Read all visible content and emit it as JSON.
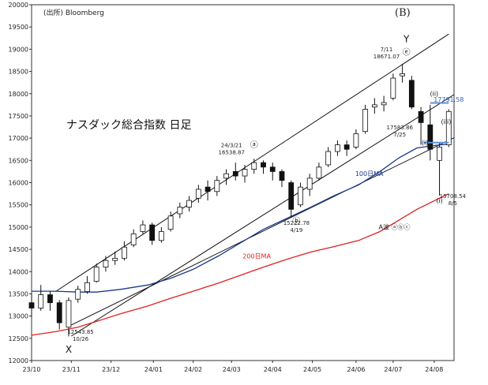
{
  "source_label": "(出所) Bloomberg",
  "panel_label": "(B)",
  "chart_data": {
    "type": "candlestick",
    "title": "ナスダック総合指数 日足",
    "ylim": [
      12000,
      20000
    ],
    "y_ticks": [
      12000,
      12500,
      13000,
      13500,
      14000,
      14500,
      15000,
      15500,
      16000,
      16500,
      17000,
      17500,
      18000,
      18500,
      19000,
      19500,
      20000
    ],
    "x_ticks": [
      "23/10",
      "23/11",
      "23/12",
      "24/01",
      "24/02",
      "24/03",
      "24/04",
      "24/05",
      "24/06",
      "24/07",
      "24/08"
    ],
    "x_start": "2023-10-02",
    "x_end": "2024-08-16",
    "grid": false,
    "series": [
      {
        "name": "100日MA",
        "color": "#1a3a8c",
        "points": [
          [
            "2023-10-02",
            13560
          ],
          [
            "2023-10-20",
            13560
          ],
          [
            "2023-11-06",
            13540
          ],
          [
            "2023-11-20",
            13540
          ],
          [
            "2023-12-08",
            13600
          ],
          [
            "2023-12-29",
            13700
          ],
          [
            "2024-01-15",
            13850
          ],
          [
            "2024-02-01",
            14050
          ],
          [
            "2024-02-20",
            14350
          ],
          [
            "2024-03-08",
            14650
          ],
          [
            "2024-03-25",
            14950
          ],
          [
            "2024-04-12",
            15200
          ],
          [
            "2024-04-30",
            15450
          ],
          [
            "2024-05-17",
            15700
          ],
          [
            "2024-06-05",
            15950
          ],
          [
            "2024-06-21",
            16250
          ],
          [
            "2024-07-05",
            16550
          ],
          [
            "2024-07-19",
            16780
          ],
          [
            "2024-08-05",
            16850
          ],
          [
            "2024-08-12",
            16860
          ]
        ]
      },
      {
        "name": "200日MA",
        "color": "#e02020",
        "points": [
          [
            "2023-10-02",
            12570
          ],
          [
            "2023-10-20",
            12650
          ],
          [
            "2023-11-06",
            12750
          ],
          [
            "2023-11-20",
            12880
          ],
          [
            "2023-12-08",
            13050
          ],
          [
            "2023-12-29",
            13230
          ],
          [
            "2024-01-15",
            13400
          ],
          [
            "2024-02-01",
            13560
          ],
          [
            "2024-02-20",
            13740
          ],
          [
            "2024-03-08",
            13920
          ],
          [
            "2024-03-25",
            14100
          ],
          [
            "2024-04-12",
            14280
          ],
          [
            "2024-04-30",
            14440
          ],
          [
            "2024-05-17",
            14560
          ],
          [
            "2024-06-05",
            14700
          ],
          [
            "2024-06-21",
            14900
          ],
          [
            "2024-07-05",
            15150
          ],
          [
            "2024-07-19",
            15400
          ],
          [
            "2024-08-05",
            15650
          ],
          [
            "2024-08-12",
            15750
          ]
        ]
      }
    ],
    "candles": [
      [
        "2023-10-02",
        13300,
        13180,
        13500,
        12980
      ],
      [
        "2023-10-09",
        13180,
        13480,
        13700,
        13120
      ],
      [
        "2023-10-16",
        13480,
        13300,
        13560,
        13120
      ],
      [
        "2023-10-23",
        13300,
        12850,
        13360,
        12700
      ],
      [
        "2023-10-30",
        12750,
        13350,
        13420,
        12543
      ],
      [
        "2023-11-06",
        13380,
        13600,
        13680,
        13300
      ],
      [
        "2023-11-13",
        13550,
        13750,
        13900,
        13500
      ],
      [
        "2023-11-20",
        13780,
        14100,
        14180,
        13750
      ],
      [
        "2023-11-27",
        14100,
        14250,
        14350,
        14000
      ],
      [
        "2023-12-04",
        14250,
        14300,
        14450,
        14150
      ],
      [
        "2023-12-11",
        14300,
        14550,
        14680,
        14250
      ],
      [
        "2023-12-18",
        14600,
        14850,
        14950,
        14550
      ],
      [
        "2023-12-25",
        14900,
        15050,
        15150,
        14850
      ],
      [
        "2024-01-01",
        15050,
        14700,
        15100,
        14600
      ],
      [
        "2024-01-08",
        14700,
        14900,
        15000,
        14650
      ],
      [
        "2024-01-15",
        14950,
        15250,
        15350,
        14900
      ],
      [
        "2024-01-22",
        15300,
        15450,
        15550,
        15200
      ],
      [
        "2024-01-29",
        15450,
        15600,
        15700,
        15350
      ],
      [
        "2024-02-05",
        15650,
        15850,
        15950,
        15550
      ],
      [
        "2024-02-12",
        15900,
        15800,
        16050,
        15600
      ],
      [
        "2024-02-19",
        15800,
        16050,
        16150,
        15700
      ],
      [
        "2024-02-26",
        16100,
        16200,
        16300,
        15950
      ],
      [
        "2024-03-04",
        16250,
        16150,
        16450,
        16050
      ],
      [
        "2024-03-11",
        16150,
        16300,
        16400,
        16000
      ],
      [
        "2024-03-18",
        16300,
        16450,
        16538,
        16200
      ],
      [
        "2024-03-25",
        16450,
        16350,
        16500,
        16200
      ],
      [
        "2024-04-01",
        16350,
        16250,
        16450,
        16050
      ],
      [
        "2024-04-08",
        16250,
        16050,
        16300,
        15900
      ],
      [
        "2024-04-15",
        16000,
        15400,
        16050,
        15222
      ],
      [
        "2024-04-22",
        15500,
        15900,
        16000,
        15450
      ],
      [
        "2024-04-29",
        15850,
        16100,
        16200,
        15700
      ],
      [
        "2024-05-06",
        16100,
        16350,
        16450,
        16050
      ],
      [
        "2024-05-13",
        16400,
        16700,
        16800,
        16350
      ],
      [
        "2024-05-20",
        16700,
        16850,
        16950,
        16600
      ],
      [
        "2024-05-27",
        16850,
        16750,
        16950,
        16600
      ],
      [
        "2024-06-03",
        16800,
        17100,
        17200,
        16750
      ],
      [
        "2024-06-10",
        17150,
        17650,
        17750,
        17100
      ],
      [
        "2024-06-17",
        17700,
        17750,
        17900,
        17550
      ],
      [
        "2024-06-24",
        17750,
        17800,
        17950,
        17600
      ],
      [
        "2024-07-01",
        17900,
        18350,
        18450,
        17850
      ],
      [
        "2024-07-08",
        18400,
        18450,
        18671,
        18250
      ],
      [
        "2024-07-15",
        18300,
        17700,
        18400,
        17650
      ],
      [
        "2024-07-22",
        17600,
        17350,
        17700,
        16850
      ],
      [
        "2024-07-29",
        17300,
        16750,
        17750,
        16500
      ],
      [
        "2024-08-05",
        16500,
        16800,
        16900,
        15708
      ],
      [
        "2024-08-12",
        16850,
        17600,
        17650,
        16800
      ]
    ],
    "channels": [
      {
        "name": "upper-channel",
        "points": [
          [
            "2023-10-20",
            13550
          ],
          [
            "2024-08-12",
            19340
          ]
        ]
      },
      {
        "name": "lower-channel",
        "points": [
          [
            "2023-11-01",
            12550
          ],
          [
            "2024-08-16",
            17980
          ]
        ]
      },
      {
        "name": "middle-channel",
        "points": [
          [
            "2023-11-01",
            12800
          ],
          [
            "2024-08-16",
            17010
          ]
        ]
      }
    ],
    "hlines": [
      {
        "name": "level-17791",
        "color": "#5b8fd6",
        "y": 17791,
        "from": "2024-07-29",
        "to": "2024-08-12"
      },
      {
        "name": "level-16900",
        "color": "#5b8fd6",
        "y": 16900,
        "from": "2024-07-24",
        "to": "2024-08-12"
      }
    ],
    "wave_labels": [
      {
        "name": "wave-x",
        "label": "X",
        "date": "2023-10-30",
        "y": 12180,
        "size": 12
      },
      {
        "name": "wave-y",
        "label": "Y",
        "date": "2024-07-11",
        "y": 19160,
        "size": 12
      },
      {
        "name": "wave-a",
        "label": "ⓐ",
        "date": "2024-03-18",
        "y": 16790,
        "size": 10
      },
      {
        "name": "wave-b",
        "label": "ⓑ",
        "date": "2024-04-19",
        "y": 15080,
        "size": 10
      },
      {
        "name": "wave-e",
        "label": "ⓔ",
        "date": "2024-07-11",
        "y": 18870,
        "size": 10
      },
      {
        "name": "wave-i",
        "label": "(i)",
        "date": "2024-07-25",
        "y": 16850,
        "size": 8
      },
      {
        "name": "wave-ii",
        "label": "(ii)",
        "date": "2024-08-01",
        "y": 17950,
        "size": 8
      },
      {
        "name": "wave-iii",
        "label": "(iii)",
        "date": "2024-08-10",
        "y": 17320,
        "size": 8
      },
      {
        "name": "wave-i-low",
        "label": "(i)",
        "date": "2024-08-05",
        "y": 15550,
        "size": 8
      }
    ],
    "annotations": [
      {
        "name": "low-1026",
        "lines": [
          "12543.85",
          "10/26"
        ],
        "date": "2023-11-08",
        "y": 12600
      },
      {
        "name": "high-0321",
        "lines": [
          "24/3/21",
          "16538.87"
        ],
        "date": "2024-03-01",
        "y": 16800
      },
      {
        "name": "low-0419",
        "lines": [
          "15222.78",
          "4/19"
        ],
        "date": "2024-04-19",
        "y": 15050
      },
      {
        "name": "high-0711",
        "lines": [
          "7/11",
          "18671.07"
        ],
        "date": "2024-06-26",
        "y": 18950
      },
      {
        "name": "level-0725",
        "lines": [
          "17583.86",
          "7/25"
        ],
        "date": "2024-07-06",
        "y": 17200
      },
      {
        "name": "low-0805",
        "lines": [
          "15708.54",
          "8/5"
        ],
        "date": "2024-08-15",
        "y": 15650
      }
    ],
    "series_labels": [
      {
        "name": "ma100-label",
        "text": "100日MA",
        "date": "2024-06-13",
        "y": 16150,
        "color": "#1a3a8c"
      },
      {
        "name": "ma200-label",
        "text": "200日MA",
        "date": "2024-03-20",
        "y": 14300,
        "color": "#e02020"
      },
      {
        "name": "level-17791-label",
        "text": "17791.58",
        "date": "2024-08-12",
        "y": 17820,
        "color": "#3060c0"
      },
      {
        "name": "abc-label",
        "text": "A波 ⓐⓑⓒ",
        "date": "2024-07-02",
        "y": 14950,
        "color": "#222222"
      }
    ]
  }
}
